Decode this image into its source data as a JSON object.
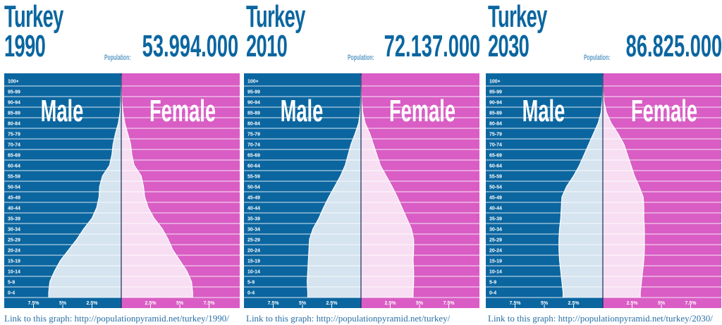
{
  "colors": {
    "male": "#0b66a0",
    "female": "#d95dc4",
    "male_fill": "#d5e4ef",
    "female_fill": "#f8def2",
    "grid": "#ffffff"
  },
  "panels": [
    {
      "country": "Turkey",
      "year": "1990",
      "population_label": "Population:",
      "population": "53.994.000",
      "link": "Link to this graph: http://populationpyramid.net/turkey/1990/"
    },
    {
      "country": "Turkey",
      "year": "2010",
      "population_label": "Population:",
      "population": "72.137.000",
      "link": "Link to this graph: http://populationpyramid.net/turkey/"
    },
    {
      "country": "Turkey",
      "year": "2030",
      "population_label": "Population:",
      "population": "86.825.000",
      "link": "Link to this graph: http://populationpyramid.net/turkey/2030/"
    }
  ],
  "chart_data": [
    {
      "type": "bar",
      "orientation": "horizontal-pyramid",
      "male_label": "Male",
      "female_label": "Female",
      "categories": [
        "0-4",
        "5-9",
        "10-14",
        "15-19",
        "20-24",
        "25-29",
        "30-34",
        "35-39",
        "40-44",
        "45-49",
        "50-54",
        "55-59",
        "60-64",
        "65-69",
        "70-74",
        "75-79",
        "80-84",
        "85-89",
        "90-94",
        "95-99",
        "100+"
      ],
      "x_ticks": [
        "7.5%",
        "5%",
        "2.5%",
        "2.5%",
        "5%",
        "7.5%"
      ],
      "xlim": [
        -10,
        10
      ],
      "series": [
        {
          "name": "Male",
          "values": [
            6.2,
            6.1,
            5.7,
            5.2,
            4.5,
            3.8,
            3.2,
            2.5,
            2.1,
            1.9,
            1.85,
            1.6,
            1.0,
            0.8,
            0.7,
            0.5,
            0.25,
            0.1,
            0.05,
            0.02,
            0
          ]
        },
        {
          "name": "Female",
          "values": [
            6.1,
            6.0,
            5.6,
            5.0,
            4.4,
            4.0,
            3.5,
            2.8,
            2.3,
            2.0,
            1.9,
            1.7,
            1.1,
            0.9,
            0.8,
            0.55,
            0.3,
            0.15,
            0.05,
            0.02,
            0
          ]
        }
      ]
    },
    {
      "type": "bar",
      "orientation": "horizontal-pyramid",
      "male_label": "Male",
      "female_label": "Female",
      "categories": [
        "0-4",
        "5-9",
        "10-14",
        "15-19",
        "20-24",
        "25-29",
        "30-34",
        "35-39",
        "40-44",
        "45-49",
        "50-54",
        "55-59",
        "60-64",
        "65-69",
        "70-74",
        "75-79",
        "80-84",
        "85-89",
        "90-94",
        "95-99",
        "100+"
      ],
      "x_ticks": [
        "7.5%",
        "5%",
        "2.5%",
        "2.5%",
        "5%",
        "7.5%"
      ],
      "xlim": [
        -10,
        10
      ],
      "series": [
        {
          "name": "Male",
          "values": [
            4.55,
            4.6,
            4.55,
            4.5,
            4.45,
            4.4,
            4.1,
            3.6,
            3.2,
            2.75,
            2.25,
            1.75,
            1.35,
            1.1,
            0.85,
            0.5,
            0.2,
            0.07,
            0.03,
            0.01,
            0
          ]
        },
        {
          "name": "Female",
          "values": [
            4.45,
            4.5,
            4.5,
            4.45,
            4.5,
            4.5,
            4.3,
            3.9,
            3.5,
            3.1,
            2.65,
            2.15,
            1.65,
            1.35,
            1.05,
            0.75,
            0.35,
            0.15,
            0.05,
            0.02,
            0
          ]
        }
      ]
    },
    {
      "type": "bar",
      "orientation": "horizontal-pyramid",
      "male_label": "Male",
      "female_label": "Female",
      "categories": [
        "0-4",
        "5-9",
        "10-14",
        "15-19",
        "20-24",
        "25-29",
        "30-34",
        "35-39",
        "40-44",
        "45-49",
        "50-54",
        "55-59",
        "60-64",
        "65-69",
        "70-74",
        "75-79",
        "80-84",
        "85-89",
        "90-94",
        "95-99",
        "100+"
      ],
      "x_ticks": [
        "7.5%",
        "5%",
        "2.5%",
        "2.5%",
        "5%",
        "7.5%"
      ],
      "xlim": [
        -10,
        10
      ],
      "series": [
        {
          "name": "Male",
          "values": [
            3.4,
            3.5,
            3.6,
            3.7,
            3.75,
            3.75,
            3.7,
            3.6,
            3.55,
            3.5,
            3.1,
            2.5,
            2.0,
            1.6,
            1.2,
            0.8,
            0.4,
            0.15,
            0.05,
            0.01,
            0
          ]
        },
        {
          "name": "Female",
          "values": [
            3.2,
            3.3,
            3.4,
            3.5,
            3.55,
            3.55,
            3.55,
            3.5,
            3.5,
            3.45,
            3.1,
            2.7,
            2.4,
            2.1,
            1.8,
            1.3,
            0.7,
            0.3,
            0.1,
            0.02,
            0
          ]
        }
      ]
    }
  ]
}
